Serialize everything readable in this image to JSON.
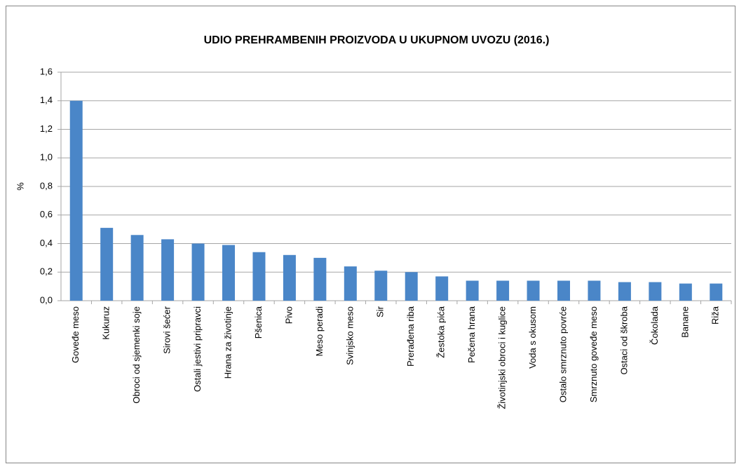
{
  "chart_data": {
    "type": "bar",
    "title": "UDIO PREHRAMBENIH PROIZVODA U UKUPNOM UVOZU (2016.)",
    "ylabel": "%",
    "categories": [
      "Goveđe meso",
      "Kukuruz",
      "Obroci od sjemenki soje",
      "Sirovi šećer",
      "Ostali jestivi pripravci",
      "Hrana za životinje",
      "Pšenica",
      "Pivo",
      "Meso peradi",
      "Svinjsko meso",
      "Sir",
      "Prerađena riba",
      "Žestoka pića",
      "Pečena hrana",
      "Životinjski obroci i kuglice",
      "Voda s okusom",
      "Ostalo smrznuto povrće",
      "Smrznuto goveđe meso",
      "Ostaci od škroba",
      "Čokolada",
      "Banane",
      "Riža"
    ],
    "values": [
      1.4,
      0.51,
      0.46,
      0.43,
      0.4,
      0.39,
      0.34,
      0.32,
      0.3,
      0.24,
      0.21,
      0.2,
      0.17,
      0.14,
      0.14,
      0.14,
      0.14,
      0.14,
      0.13,
      0.13,
      0.12,
      0.12
    ],
    "color": "#4a86c8",
    "ylim": [
      0,
      1.6
    ],
    "yticks": [
      {
        "value": 0,
        "label": "0,0"
      },
      {
        "value": 0.2,
        "label": "0,2"
      },
      {
        "value": 0.4,
        "label": "0,4"
      },
      {
        "value": 0.6,
        "label": "0,6"
      },
      {
        "value": 0.8,
        "label": "0,8"
      },
      {
        "value": 1.0,
        "label": "1,0"
      },
      {
        "value": 1.2,
        "label": "1,2"
      },
      {
        "value": 1.4,
        "label": "1,4"
      },
      {
        "value": 1.6,
        "label": "1,6"
      }
    ],
    "grid": true
  }
}
